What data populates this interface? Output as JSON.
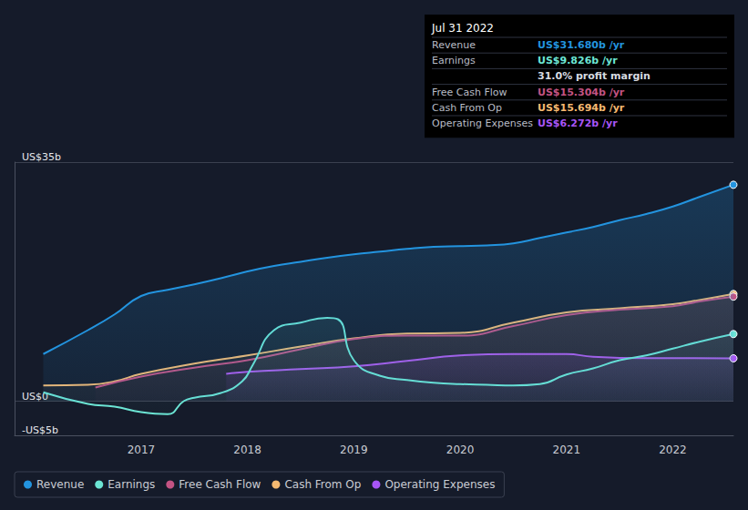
{
  "chart_data": {
    "type": "line",
    "xlim": [
      2015.81,
      2022.57
    ],
    "xticks": [
      2017,
      2018,
      2019,
      2020,
      2021,
      2022
    ],
    "ylim": [
      -5,
      35
    ],
    "yticks": [
      {
        "value": -5,
        "label": "-US$5b"
      },
      {
        "value": 0,
        "label": "US$0"
      },
      {
        "value": 35,
        "label": "US$35b"
      }
    ],
    "grid": true,
    "legend": "bottom-left",
    "marker": "end",
    "series": [
      {
        "name": "Revenue",
        "color": "#2394df",
        "x": [
          2016.08,
          2016.5,
          2016.75,
          2017.0,
          2017.25,
          2017.5,
          2017.75,
          2018.0,
          2018.25,
          2018.5,
          2018.75,
          2019.0,
          2019.25,
          2019.5,
          2019.75,
          2020.0,
          2020.25,
          2020.5,
          2020.75,
          2021.0,
          2021.25,
          2021.5,
          2021.75,
          2022.0,
          2022.25,
          2022.57
        ],
        "values": [
          6.9,
          10.4,
          12.7,
          15.4,
          16.3,
          17.1,
          18.0,
          19.0,
          19.8,
          20.4,
          21.0,
          21.5,
          21.9,
          22.3,
          22.6,
          22.7,
          22.8,
          23.1,
          23.9,
          24.7,
          25.5,
          26.5,
          27.4,
          28.5,
          29.9,
          31.68
        ]
      },
      {
        "name": "Earnings",
        "color": "#6ce5d4",
        "x": [
          2016.08,
          2016.5,
          2016.75,
          2017.0,
          2017.25,
          2017.4,
          2017.5,
          2017.75,
          2017.95,
          2018.05,
          2018.25,
          2018.5,
          2018.75,
          2018.85,
          2019.0,
          2019.25,
          2019.5,
          2019.75,
          2020.0,
          2020.25,
          2020.5,
          2020.75,
          2021.0,
          2021.25,
          2021.5,
          2021.75,
          2022.0,
          2022.25,
          2022.57
        ],
        "values": [
          1.3,
          -0.4,
          -0.8,
          -1.6,
          -1.9,
          0.0,
          0.5,
          1.2,
          2.9,
          5.3,
          10.4,
          11.5,
          12.2,
          12.0,
          6.0,
          3.7,
          3.1,
          2.7,
          2.5,
          2.4,
          2.3,
          2.5,
          3.9,
          4.8,
          6.0,
          6.7,
          7.7,
          8.7,
          9.826
        ]
      },
      {
        "name": "Free Cash Flow",
        "color": "#c35383",
        "x": [
          2016.57,
          2017.0,
          2017.5,
          2018.0,
          2018.5,
          2019.0,
          2019.5,
          2020.0,
          2020.5,
          2021.0,
          2021.5,
          2022.0,
          2022.25,
          2022.57
        ],
        "values": [
          2.0,
          3.6,
          4.9,
          6.0,
          7.6,
          9.1,
          9.6,
          9.6,
          11.0,
          12.6,
          13.4,
          13.9,
          14.6,
          15.304
        ]
      },
      {
        "name": "Cash From Op",
        "color": "#f5b971",
        "x": [
          2016.08,
          2016.5,
          2016.75,
          2017.0,
          2017.5,
          2018.0,
          2018.5,
          2019.0,
          2019.5,
          2020.0,
          2020.5,
          2021.0,
          2021.5,
          2022.0,
          2022.25,
          2022.57
        ],
        "values": [
          2.3,
          2.4,
          2.9,
          4.0,
          5.5,
          6.7,
          8.0,
          9.2,
          9.9,
          10.0,
          11.5,
          13.0,
          13.6,
          14.2,
          14.8,
          15.694
        ]
      },
      {
        "name": "Operating Expenses",
        "color": "#a855f7",
        "x": [
          2017.8,
          2018.0,
          2018.5,
          2019.0,
          2019.5,
          2020.0,
          2020.5,
          2021.0,
          2021.25,
          2021.75,
          2022.0,
          2022.57
        ],
        "values": [
          4.0,
          4.3,
          4.7,
          5.1,
          5.9,
          6.7,
          6.9,
          6.9,
          6.5,
          6.3,
          6.3,
          6.272
        ]
      }
    ],
    "annotations": [
      {
        "title": "Jul 31 2022",
        "rows": [
          {
            "label": "Revenue",
            "value": "US$31.680b /yr",
            "color": "#2394df"
          },
          {
            "label": "Earnings",
            "value": "US$9.826b /yr",
            "color": "#6ce5d4"
          },
          {
            "value": "31.0% profit margin",
            "color": "#d8dbe0"
          },
          {
            "label": "Free Cash Flow",
            "value": "US$15.304b /yr",
            "color": "#c35383"
          },
          {
            "label": "Cash From Op",
            "value": "US$15.694b /yr",
            "color": "#f5b971"
          },
          {
            "label": "Operating Expenses",
            "value": "US$6.272b /yr",
            "color": "#a855f7"
          }
        ]
      }
    ]
  }
}
